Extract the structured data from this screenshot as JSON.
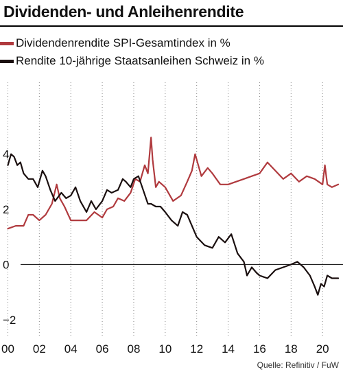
{
  "header": {
    "title": "Dividenden- und Anleihenrendite"
  },
  "source": "Quelle: Refinitiv / FuW",
  "chart_data": {
    "type": "line",
    "title": "Dividenden- und Anleihenrendite",
    "xlabel": "",
    "ylabel": "",
    "xlim": [
      1999.5,
      2021.3
    ],
    "ylim": [
      -2.6,
      6.6
    ],
    "x_tick_labels": [
      "00",
      "02",
      "04",
      "06",
      "08",
      "10",
      "12",
      "14",
      "16",
      "18",
      "20"
    ],
    "x_ticks": [
      2000,
      2002,
      2004,
      2006,
      2008,
      2010,
      2012,
      2014,
      2016,
      2018,
      2020
    ],
    "y_ticks": [
      4,
      2,
      0,
      -2
    ],
    "y_tick_labels": [
      "4",
      "2",
      "0",
      "−2"
    ],
    "grid": "vertical",
    "legend_position": "top-left",
    "zero_line": true,
    "series": [
      {
        "name": "Dividendenrendite SPI-Gesamtindex in %",
        "color": "#b03a3e",
        "x": [
          2000.0,
          2000.5,
          2001.0,
          2001.3,
          2001.6,
          2001.8,
          2002.0,
          2002.4,
          2002.8,
          2003.1,
          2003.3,
          2003.6,
          2004.0,
          2004.5,
          2005.0,
          2005.5,
          2006.0,
          2006.3,
          2006.7,
          2007.0,
          2007.4,
          2007.8,
          2008.1,
          2008.4,
          2008.7,
          2008.9,
          2009.1,
          2009.2,
          2009.4,
          2009.6,
          2010.0,
          2010.5,
          2011.0,
          2011.4,
          2011.7,
          2011.9,
          2012.3,
          2012.7,
          2013.0,
          2013.5,
          2014.0,
          2014.5,
          2015.0,
          2015.5,
          2016.0,
          2016.5,
          2017.0,
          2017.5,
          2018.0,
          2018.5,
          2019.0,
          2019.5,
          2020.0,
          2020.15,
          2020.3,
          2020.6,
          2021.0
        ],
        "y": [
          1.3,
          1.4,
          1.4,
          1.8,
          1.8,
          1.7,
          1.6,
          1.8,
          2.2,
          2.9,
          2.4,
          2.1,
          1.6,
          1.6,
          1.6,
          1.9,
          1.7,
          2.0,
          2.1,
          2.4,
          2.3,
          2.6,
          3.1,
          3.0,
          3.6,
          3.3,
          4.6,
          3.8,
          2.8,
          3.0,
          2.8,
          2.3,
          2.5,
          3.0,
          3.4,
          4.0,
          3.2,
          3.5,
          3.3,
          2.9,
          2.9,
          3.0,
          3.1,
          3.2,
          3.3,
          3.7,
          3.4,
          3.1,
          3.3,
          3.0,
          3.2,
          3.1,
          2.9,
          3.6,
          2.9,
          2.8,
          2.9
        ]
      },
      {
        "name": "Rendite 10-jährige Staatsanleihen Schweiz in %",
        "color": "#1a0f0f",
        "x": [
          2000.0,
          2000.2,
          2000.4,
          2000.6,
          2000.8,
          2001.0,
          2001.3,
          2001.6,
          2001.9,
          2002.2,
          2002.4,
          2002.7,
          2003.0,
          2003.4,
          2003.7,
          2004.0,
          2004.3,
          2004.6,
          2005.0,
          2005.3,
          2005.6,
          2006.0,
          2006.3,
          2006.6,
          2007.0,
          2007.3,
          2007.5,
          2007.8,
          2008.0,
          2008.3,
          2008.6,
          2008.9,
          2009.1,
          2009.4,
          2009.7,
          2010.0,
          2010.4,
          2010.8,
          2011.1,
          2011.4,
          2011.7,
          2012.0,
          2012.5,
          2013.0,
          2013.4,
          2013.8,
          2014.2,
          2014.6,
          2015.0,
          2015.2,
          2015.5,
          2015.8,
          2016.0,
          2016.5,
          2017.0,
          2017.5,
          2018.0,
          2018.4,
          2018.8,
          2019.2,
          2019.5,
          2019.7,
          2019.9,
          2020.1,
          2020.3,
          2020.6,
          2021.0
        ],
        "y": [
          3.6,
          4.0,
          3.9,
          3.6,
          3.7,
          3.3,
          3.1,
          3.1,
          2.8,
          3.4,
          3.2,
          2.7,
          2.3,
          2.6,
          2.4,
          2.5,
          2.8,
          2.3,
          1.9,
          2.3,
          2.0,
          2.3,
          2.7,
          2.6,
          2.7,
          3.1,
          3.0,
          2.8,
          3.1,
          3.2,
          2.7,
          2.2,
          2.2,
          2.1,
          2.1,
          1.9,
          1.6,
          1.4,
          1.9,
          1.8,
          1.4,
          1.0,
          0.7,
          0.6,
          1.0,
          0.8,
          1.1,
          0.4,
          0.1,
          -0.4,
          -0.1,
          -0.3,
          -0.4,
          -0.5,
          -0.2,
          -0.1,
          0.0,
          0.1,
          -0.1,
          -0.4,
          -0.8,
          -1.1,
          -0.7,
          -0.8,
          -0.4,
          -0.5,
          -0.5
        ]
      }
    ]
  }
}
